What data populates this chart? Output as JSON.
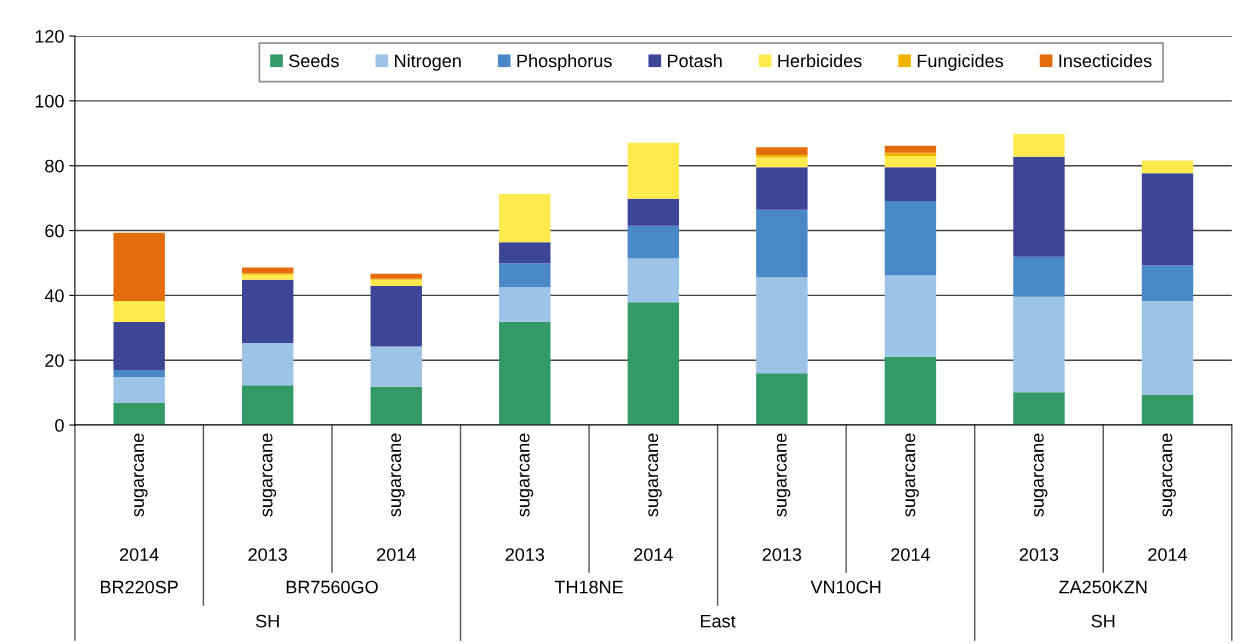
{
  "chart_data": {
    "type": "bar",
    "stacked": true,
    "categories": [
      "sugarcane",
      "sugarcane",
      "sugarcane",
      "sugarcane",
      "sugarcane",
      "sugarcane",
      "sugarcane",
      "sugarcane",
      "sugarcane"
    ],
    "annotations": [
      "2014",
      "2013",
      "2014",
      "2013",
      "2014",
      "2013",
      "2014",
      "2013",
      "2014",
      "BR220SP",
      "BR7560GO",
      "TH18NE",
      "VN10CH",
      "ZA250KZN",
      "SH",
      "East",
      "SH"
    ],
    "series": [
      {
        "name": "Seeds",
        "color": "#339966",
        "values": [
          6.8,
          12.3,
          11.8,
          31.9,
          37.9,
          16.0,
          21.1,
          10.1,
          9.3
        ]
      },
      {
        "name": "Nitrogen",
        "color": "#9dc3e6",
        "values": [
          8.0,
          13.0,
          12.4,
          10.6,
          13.5,
          29.6,
          25.0,
          29.5,
          29.0
        ]
      },
      {
        "name": "Phosphorus",
        "color": "#4a89c8",
        "values": [
          2.2,
          0,
          0,
          7.4,
          10.1,
          20.8,
          23.0,
          12.3,
          10.9
        ]
      },
      {
        "name": "Potash",
        "color": "#3c4596",
        "values": [
          14.8,
          19.5,
          18.7,
          6.5,
          8.3,
          13.1,
          10.4,
          30.9,
          28.5
        ]
      },
      {
        "name": "Herbicides",
        "color": "#ffe94d",
        "values": [
          6.5,
          1.6,
          1.9,
          14.9,
          17.3,
          3.0,
          3.5,
          7.0,
          3.9
        ]
      },
      {
        "name": "Fungicides",
        "color": "#f2b400",
        "values": [
          0,
          0.4,
          0.3,
          0,
          0,
          0.8,
          1.0,
          0,
          0
        ]
      },
      {
        "name": "Insecticides",
        "color": "#e46c0a",
        "values": [
          21.0,
          1.8,
          1.6,
          0,
          0,
          2.4,
          2.2,
          0,
          0
        ]
      }
    ],
    "ylim": [
      0,
      120
    ],
    "yticks": [
      0,
      20,
      40,
      60,
      80,
      100,
      120
    ],
    "grid": "y",
    "legend": "top"
  }
}
